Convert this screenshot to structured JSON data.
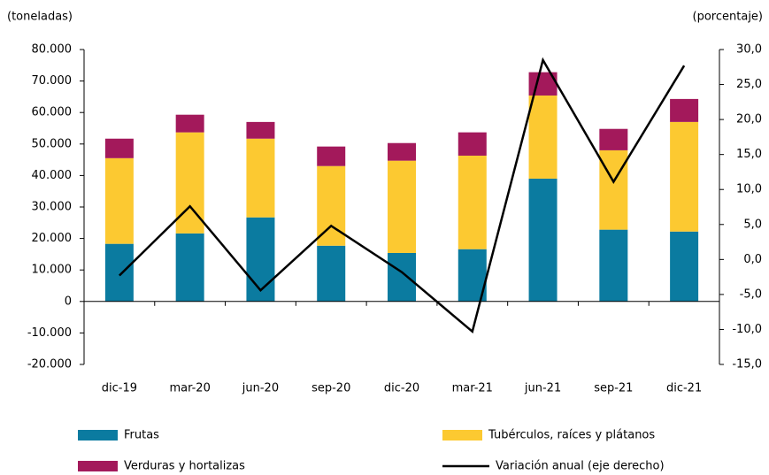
{
  "chart_data": {
    "type": "bar",
    "y_label": "(toneladas)",
    "y2_label": "(porcentaje)",
    "stacked": true,
    "categories": [
      "dic-19",
      "mar-20",
      "jun-20",
      "sep-20",
      "dic-20",
      "mar-21",
      "jun-21",
      "sep-21",
      "dic-21"
    ],
    "series": [
      {
        "name": "Frutas",
        "color": "#0b7ba0",
        "values": [
          18300,
          21600,
          26700,
          17700,
          15400,
          16600,
          39000,
          22800,
          22200
        ]
      },
      {
        "name": "Verduras y hortalizas",
        "color": "#a3195b",
        "values": [
          6200,
          5600,
          5300,
          6200,
          5600,
          7400,
          7400,
          6800,
          7300
        ]
      },
      {
        "name": "Tubérculos, raíces y plátanos",
        "color": "#fcc931",
        "values": [
          27200,
          32100,
          25000,
          25300,
          29300,
          29700,
          26400,
          25200,
          34800
        ]
      },
      {
        "name": "Variación anual (eje derecho)",
        "color": "#000000",
        "type": "line",
        "axis": "y2",
        "values": [
          -2.3,
          7.6,
          -4.4,
          4.8,
          -1.8,
          -10.3,
          28.5,
          11.1,
          27.7
        ]
      }
    ],
    "stack_order": [
      0,
      2,
      1
    ],
    "ylim": [
      -20000,
      80000
    ],
    "yticks": [
      {
        "value": -20000,
        "label": "-20.000"
      },
      {
        "value": -10000,
        "label": "-10.000"
      },
      0,
      {
        "value": 10000,
        "label": "10.000"
      },
      {
        "value": 20000,
        "label": "20.000"
      },
      {
        "value": 30000,
        "label": "30.000"
      },
      {
        "value": 40000,
        "label": "40.000"
      },
      {
        "value": 50000,
        "label": "50.000"
      },
      {
        "value": 60000,
        "label": "60.000"
      },
      {
        "value": 70000,
        "label": "70.000"
      },
      {
        "value": 80000,
        "label": "80.000"
      }
    ],
    "y2lim": [
      -15,
      30
    ],
    "y2ticks": [
      {
        "value": -15,
        "label": "-15,0"
      },
      {
        "value": -10,
        "label": "-10,0"
      },
      {
        "value": -5,
        "label": "-5,0"
      },
      {
        "value": 0,
        "label": "0,0"
      },
      {
        "value": 5,
        "label": "5,0"
      },
      {
        "value": 10,
        "label": "10,0"
      },
      {
        "value": 15,
        "label": "15,0"
      },
      {
        "value": 20,
        "label": "20,0"
      },
      {
        "value": 25,
        "label": "25,0"
      },
      {
        "value": 30,
        "label": "30,0"
      }
    ],
    "legend": "bottom"
  }
}
